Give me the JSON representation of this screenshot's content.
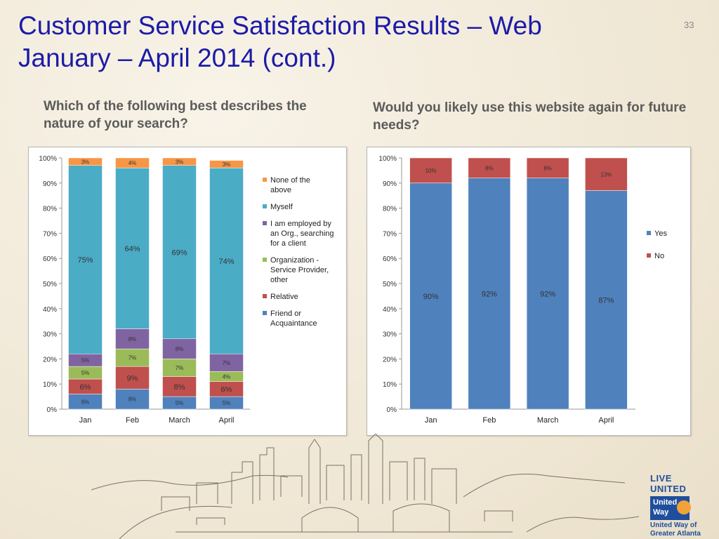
{
  "slide": {
    "title_line1": "Customer Service Satisfaction Results – Web",
    "title_line2": "January – April 2014 (cont.)",
    "number": "33"
  },
  "left": {
    "question": "Which of the following best describes the nature of your search?"
  },
  "right": {
    "question": "Would you likely use this website again for future needs?"
  },
  "logo": {
    "tagline": "LIVE UNITED",
    "mark_line1": "United",
    "mark_line2": "Way",
    "org_line1": "United Way of",
    "org_line2": "Greater Atlanta"
  },
  "chart_data": [
    {
      "type": "bar",
      "stacked": true,
      "percent": true,
      "categories": [
        "Jan",
        "Feb",
        "March",
        "April"
      ],
      "yticks": [
        "0%",
        "10%",
        "20%",
        "30%",
        "40%",
        "50%",
        "60%",
        "70%",
        "80%",
        "90%",
        "100%"
      ],
      "ylim": [
        0,
        100
      ],
      "legend_position": "right",
      "series": [
        {
          "name": "Friend or Acquaintance",
          "color": "#4f81bd",
          "values": [
            6,
            8,
            5,
            5
          ],
          "labels": [
            "6%",
            "8%",
            "5%",
            "5%"
          ]
        },
        {
          "name": "Relative",
          "color": "#c0504d",
          "values": [
            6,
            9,
            8,
            6
          ],
          "labels": [
            "6%",
            "9%",
            "8%",
            "6%"
          ]
        },
        {
          "name": "Organization - Service Provider, other",
          "color": "#9bbb59",
          "values": [
            5,
            7,
            7,
            4
          ],
          "labels": [
            "5%",
            "7%",
            "7%",
            "4%"
          ]
        },
        {
          "name": "I am employed by an Org., searching for a client",
          "color": "#8064a2",
          "values": [
            5,
            8,
            8,
            7
          ],
          "labels": [
            "5%",
            "8%",
            "8%",
            "7%"
          ]
        },
        {
          "name": "Myself",
          "color": "#4bacc6",
          "values": [
            75,
            64,
            69,
            74
          ],
          "labels": [
            "75%",
            "64%",
            "69%",
            "74%"
          ]
        },
        {
          "name": "None of the above",
          "color": "#f79646",
          "values": [
            3,
            4,
            3,
            3
          ],
          "labels": [
            "3%",
            "4%",
            "3%",
            "3%"
          ]
        }
      ],
      "legend_lines": [
        {
          "series": "None of the above",
          "lines": [
            "None of the",
            "above"
          ]
        },
        {
          "series": "Myself",
          "lines": [
            "Myself"
          ]
        },
        {
          "series": "I am employed by an Org., searching for a client",
          "lines": [
            "I am employed by",
            "an Org., searching",
            "for a client"
          ]
        },
        {
          "series": "Organization - Service Provider, other",
          "lines": [
            "Organization -",
            "Service Provider,",
            "other"
          ]
        },
        {
          "series": "Relative",
          "lines": [
            "Relative"
          ]
        },
        {
          "series": "Friend or Acquaintance",
          "lines": [
            "Friend or",
            "Acquaintance"
          ]
        }
      ]
    },
    {
      "type": "bar",
      "stacked": true,
      "percent": true,
      "categories": [
        "Jan",
        "Feb",
        "March",
        "April"
      ],
      "yticks": [
        "0%",
        "10%",
        "20%",
        "30%",
        "40%",
        "50%",
        "60%",
        "70%",
        "80%",
        "90%",
        "100%"
      ],
      "ylim": [
        0,
        100
      ],
      "legend_position": "right",
      "series": [
        {
          "name": "Yes",
          "color": "#4f81bd",
          "values": [
            90,
            92,
            92,
            87
          ],
          "labels": [
            "90%",
            "92%",
            "92%",
            "87%"
          ]
        },
        {
          "name": "No",
          "color": "#c0504d",
          "values": [
            10,
            8,
            8,
            13
          ],
          "labels": [
            "10%",
            "8%",
            "8%",
            "13%"
          ]
        }
      ],
      "legend_lines": [
        {
          "series": "Yes",
          "lines": [
            "Yes"
          ]
        },
        {
          "series": "No",
          "lines": [
            "No"
          ]
        }
      ]
    }
  ]
}
